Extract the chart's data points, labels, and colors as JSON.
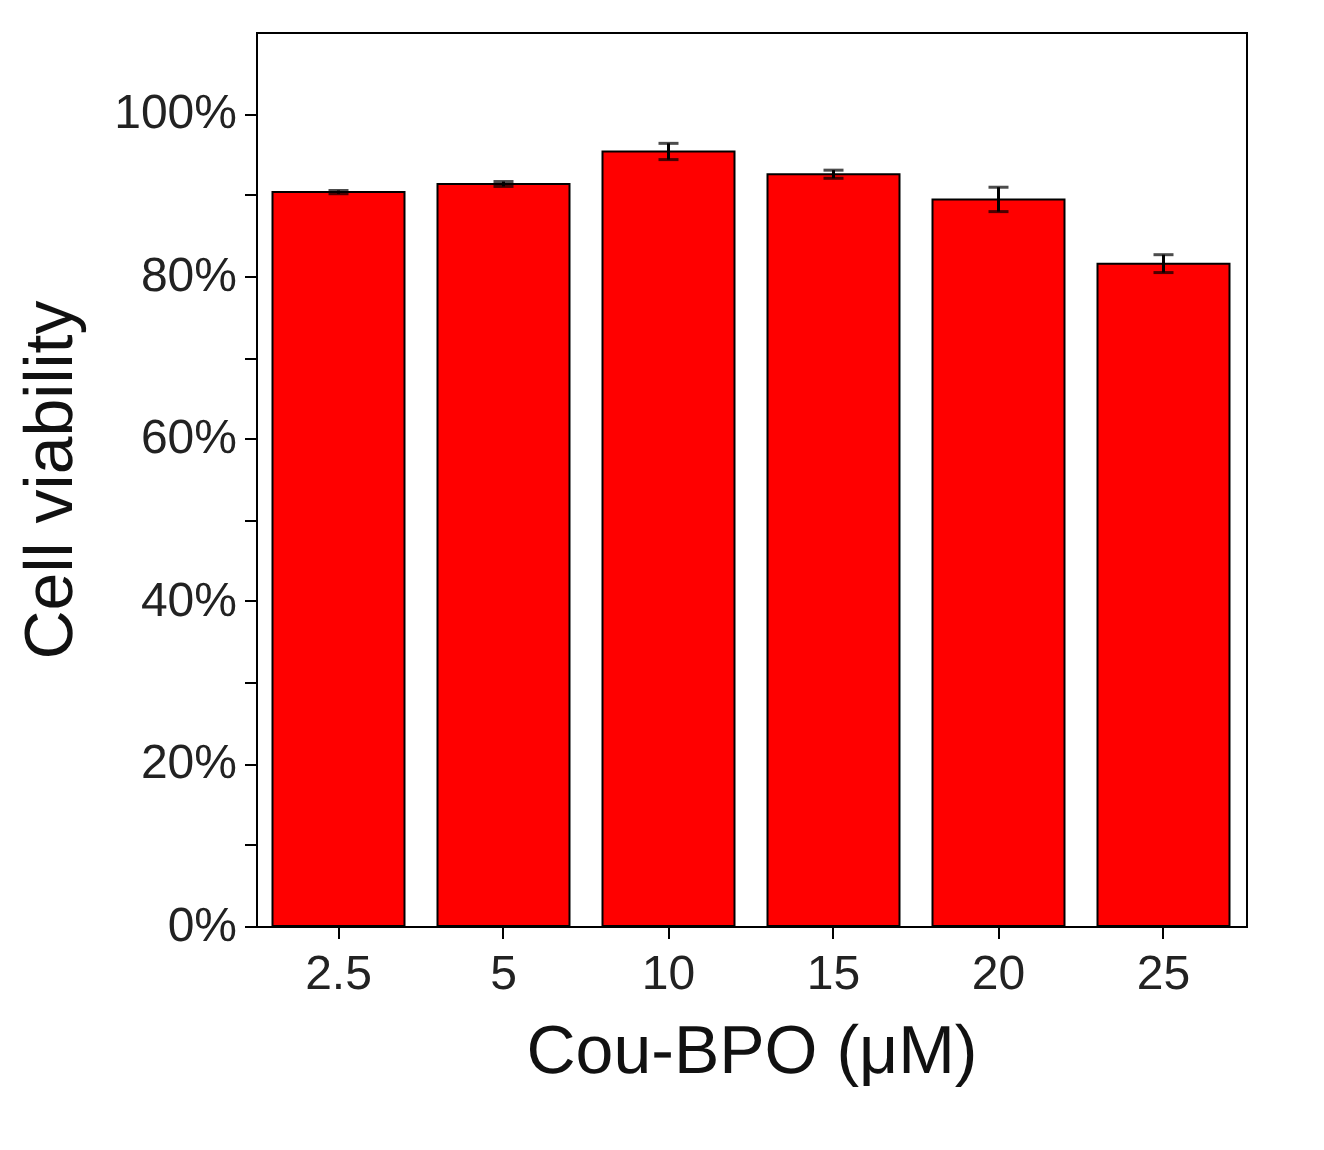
{
  "chart_data": {
    "type": "bar",
    "xlabel": "Cou-BPO (μM)",
    "ylabel": "Cell viability",
    "categories": [
      "2.5",
      "5",
      "10",
      "15",
      "20",
      "25"
    ],
    "values": [
      90.3,
      91.3,
      95.3,
      92.5,
      89.4,
      81.5
    ],
    "errors": [
      0.2,
      0.3,
      1.0,
      0.5,
      1.5,
      1.1
    ],
    "color": "#ff0000",
    "ylim": [
      0,
      110
    ],
    "yticks": [
      {
        "value": 0,
        "label": "0%"
      },
      {
        "value": 10,
        "label": null
      },
      {
        "value": 20,
        "label": "20%"
      },
      {
        "value": 30,
        "label": null
      },
      {
        "value": 40,
        "label": "40%"
      },
      {
        "value": 50,
        "label": null
      },
      {
        "value": 60,
        "label": "60%"
      },
      {
        "value": 70,
        "label": null
      },
      {
        "value": 80,
        "label": "80%"
      },
      {
        "value": 90,
        "label": null
      },
      {
        "value": 100,
        "label": "100%"
      }
    ],
    "grid": false
  }
}
